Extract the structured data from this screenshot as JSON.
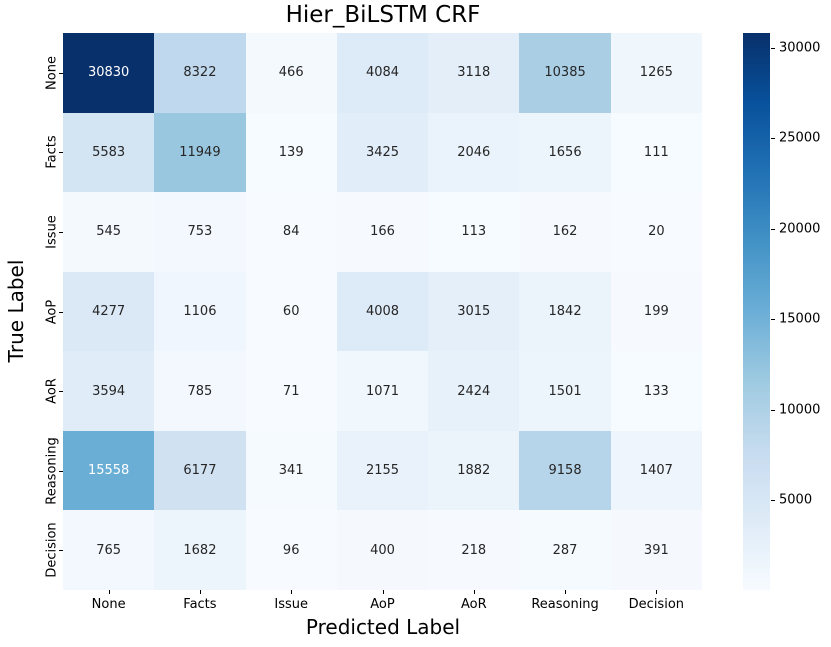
{
  "title": "Hier_BiLSTM CRF",
  "axes": {
    "xlabel": "Predicted Label",
    "ylabel": "True Label"
  },
  "chart_data": {
    "type": "heatmap",
    "title": "Hier_BiLSTM CRF",
    "xlabel": "Predicted Label",
    "ylabel": "True Label",
    "x_categories": [
      "None",
      "Facts",
      "Issue",
      "AoP",
      "AoR",
      "Reasoning",
      "Decision"
    ],
    "y_categories": [
      "None",
      "Facts",
      "Issue",
      "AoP",
      "AoR",
      "Reasoning",
      "Decision"
    ],
    "matrix": [
      [
        30830,
        8322,
        466,
        4084,
        3118,
        10385,
        1265
      ],
      [
        5583,
        11949,
        139,
        3425,
        2046,
        1656,
        111
      ],
      [
        545,
        753,
        84,
        166,
        113,
        162,
        20
      ],
      [
        4277,
        1106,
        60,
        4008,
        3015,
        1842,
        199
      ],
      [
        3594,
        785,
        71,
        1071,
        2424,
        1501,
        133
      ],
      [
        15558,
        6177,
        341,
        2155,
        1882,
        9158,
        1407
      ],
      [
        765,
        1682,
        96,
        400,
        218,
        287,
        391
      ]
    ],
    "vmin": 20,
    "vmax": 30830,
    "colormap": "Blues",
    "colormap_anchors": [
      [
        247,
        251,
        255
      ],
      [
        222,
        235,
        247
      ],
      [
        198,
        219,
        239
      ],
      [
        158,
        202,
        225
      ],
      [
        107,
        174,
        214
      ],
      [
        66,
        146,
        198
      ],
      [
        33,
        113,
        181
      ],
      [
        8,
        81,
        156
      ],
      [
        8,
        48,
        107
      ]
    ],
    "annotation_colors": {
      "dark": "#262626",
      "light": "#ffffff"
    },
    "colorbar_ticks": [
      5000,
      10000,
      15000,
      20000,
      25000,
      30000
    ],
    "legend_position": "right-colorbar",
    "grid": false
  }
}
